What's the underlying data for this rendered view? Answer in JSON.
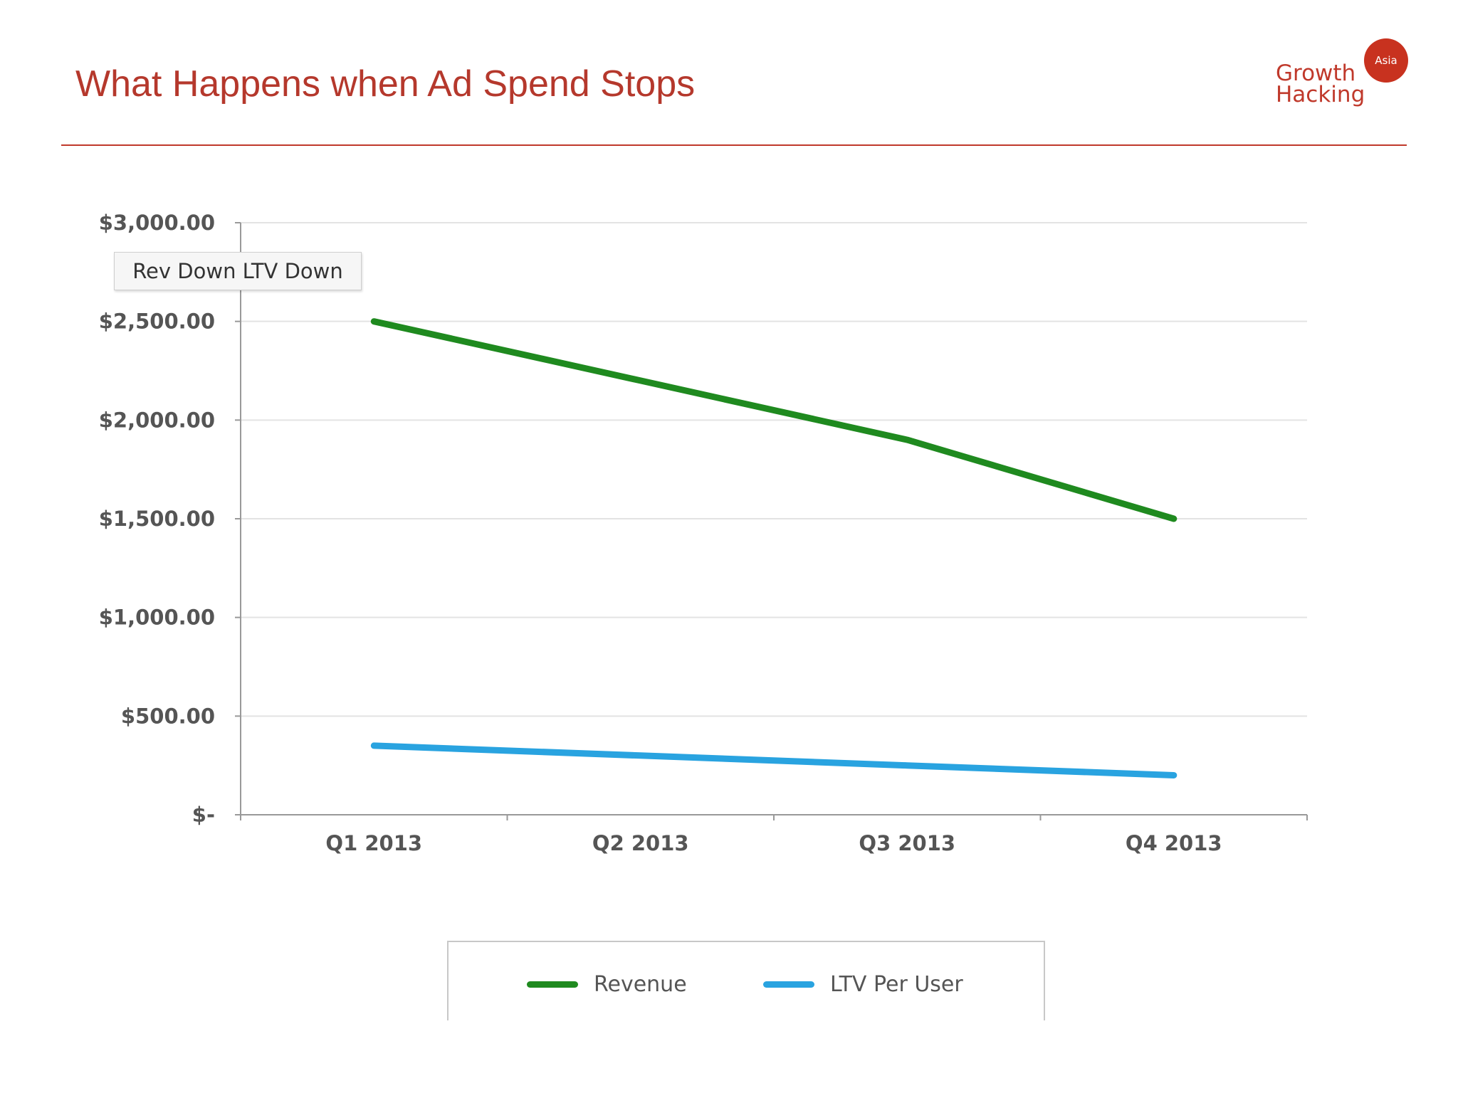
{
  "slide": {
    "title": "What Happens when Ad Spend Stops"
  },
  "logo": {
    "line1": "Growth",
    "line2": "Hacking",
    "badge": "Asia",
    "color": "#c0392b"
  },
  "chart_data": {
    "type": "line",
    "categories": [
      "Q1 2013",
      "Q2 2013",
      "Q3 2013",
      "Q4 2013"
    ],
    "series": [
      {
        "name": "Revenue",
        "values": [
          2500,
          2200,
          1900,
          1500
        ],
        "color": "#1f8a1f"
      },
      {
        "name": "LTV Per User",
        "values": [
          350,
          300,
          250,
          200
        ],
        "color": "#29a3e0"
      }
    ],
    "ylim": [
      0,
      3000
    ],
    "yticks": [
      {
        "value": 0,
        "label": "$-"
      },
      {
        "value": 500,
        "label": "$500.00"
      },
      {
        "value": 1000,
        "label": "$1,000.00"
      },
      {
        "value": 1500,
        "label": "$1,500.00"
      },
      {
        "value": 2000,
        "label": "$2,000.00"
      },
      {
        "value": 2500,
        "label": "$2,500.00"
      },
      {
        "value": 3000,
        "label": "$3,000.00"
      }
    ],
    "annotation": "Rev Down LTV Down",
    "grid": true,
    "legend_position": "bottom"
  }
}
